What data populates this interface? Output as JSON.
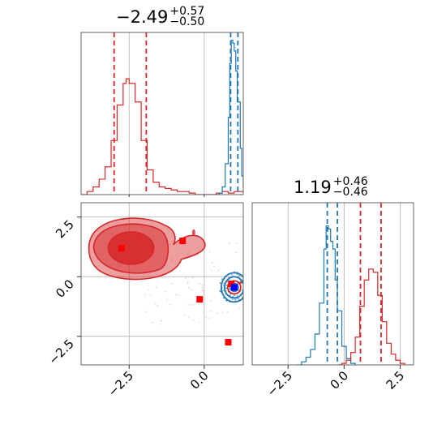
{
  "chart_data": {
    "type": "corner",
    "colors": {
      "red": "#d62728",
      "blue": "#1f77b4",
      "marker_red": "#ff0000",
      "marker_blue": "#0000ff",
      "grid": "#b0b0b0"
    },
    "titles": [
      {
        "value": "−2.49",
        "sup": "+0.57",
        "sub": "−0.50"
      },
      {
        "value": "1.19",
        "sup": "+0.46",
        "sub": "−0.46"
      }
    ],
    "x_range": [
      -4.1,
      1.3
    ],
    "y_range": [
      -3.7,
      3.1
    ],
    "x2_range": [
      -4.1,
      3.1
    ],
    "xticks": [
      {
        "value": -2.5,
        "label": "−2.5"
      },
      {
        "value": 0.0,
        "label": "0.0"
      }
    ],
    "yticks": [
      {
        "value": 2.5,
        "label": "2.5"
      },
      {
        "value": 0.0,
        "label": "0.0"
      },
      {
        "value": -2.5,
        "label": "−2.5"
      }
    ],
    "x2ticks": [
      {
        "value": -2.5,
        "label": "−2.5"
      },
      {
        "value": 0.0,
        "label": "0.0"
      },
      {
        "value": 2.5,
        "label": "2.5"
      }
    ],
    "param1_hist_red": [
      [
        -4.1,
        0.0
      ],
      [
        -3.9,
        0.02
      ],
      [
        -3.7,
        0.05
      ],
      [
        -3.5,
        0.1
      ],
      [
        -3.3,
        0.18
      ],
      [
        -3.1,
        0.35
      ],
      [
        -2.9,
        0.58
      ],
      [
        -2.7,
        0.72
      ],
      [
        -2.6,
        0.75
      ],
      [
        -2.5,
        0.72
      ],
      [
        -2.3,
        0.6
      ],
      [
        -2.1,
        0.35
      ],
      [
        -1.9,
        0.16
      ],
      [
        -1.7,
        0.08
      ],
      [
        -1.5,
        0.05
      ],
      [
        -1.3,
        0.04
      ],
      [
        -1.1,
        0.03
      ],
      [
        -0.9,
        0.02
      ],
      [
        -0.7,
        0.02
      ],
      [
        -0.5,
        0.01
      ],
      [
        -0.3,
        0.0
      ],
      [
        0.0,
        0.0
      ],
      [
        0.2,
        0.0
      ],
      [
        0.4,
        0.01
      ],
      [
        0.6,
        0.02
      ],
      [
        0.8,
        0.01
      ],
      [
        1.0,
        0.02
      ],
      [
        1.2,
        0.02
      ],
      [
        1.3,
        0.01
      ]
    ],
    "param1_hist_blue": [
      [
        0.3,
        0.0
      ],
      [
        0.5,
        0.01
      ],
      [
        0.6,
        0.05
      ],
      [
        0.7,
        0.2
      ],
      [
        0.8,
        0.5
      ],
      [
        0.85,
        0.85
      ],
      [
        0.9,
        1.0
      ],
      [
        0.95,
        0.98
      ],
      [
        1.0,
        0.93
      ],
      [
        1.05,
        0.8
      ],
      [
        1.1,
        0.6
      ],
      [
        1.2,
        0.3
      ],
      [
        1.25,
        0.12
      ],
      [
        1.3,
        0.04
      ]
    ],
    "param1_lines_red": [
      -3.0,
      -1.93
    ],
    "param1_lines_blue": [
      0.88,
      1.12
    ],
    "param2_hist_blue": [
      [
        -2.1,
        0.0
      ],
      [
        -1.9,
        0.02
      ],
      [
        -1.7,
        0.05
      ],
      [
        -1.5,
        0.1
      ],
      [
        -1.3,
        0.2
      ],
      [
        -1.1,
        0.4
      ],
      [
        -0.9,
        0.75
      ],
      [
        -0.8,
        0.9
      ],
      [
        -0.7,
        0.88
      ],
      [
        -0.6,
        0.8
      ],
      [
        -0.5,
        0.75
      ],
      [
        -0.4,
        0.55
      ],
      [
        -0.3,
        0.35
      ],
      [
        -0.1,
        0.12
      ],
      [
        0.1,
        0.04
      ],
      [
        0.3,
        0.01
      ],
      [
        0.5,
        0.0
      ]
    ],
    "param2_hist_red": [
      [
        -0.3,
        0.0
      ],
      [
        -0.1,
        0.01
      ],
      [
        0.1,
        0.03
      ],
      [
        0.3,
        0.08
      ],
      [
        0.5,
        0.18
      ],
      [
        0.7,
        0.38
      ],
      [
        0.9,
        0.55
      ],
      [
        1.1,
        0.62
      ],
      [
        1.3,
        0.6
      ],
      [
        1.5,
        0.45
      ],
      [
        1.7,
        0.28
      ],
      [
        1.9,
        0.14
      ],
      [
        2.1,
        0.07
      ],
      [
        2.3,
        0.03
      ],
      [
        2.5,
        0.01
      ],
      [
        2.7,
        0.0
      ]
    ],
    "param2_lines_blue": [
      -0.75,
      -0.3
    ],
    "param2_lines_red": [
      0.73,
      1.65
    ],
    "red_markers": [
      [
        -2.75,
        1.2
      ],
      [
        -0.72,
        1.5
      ],
      [
        -0.15,
        -0.95
      ],
      [
        0.9,
        -0.3
      ],
      [
        0.8,
        -2.75
      ]
    ],
    "blue_markers": [
      [
        1.0,
        -0.45
      ]
    ],
    "red_blob_center": [
      -2.6,
      1.2
    ],
    "blue_blob_center": [
      1.0,
      -0.45
    ]
  }
}
